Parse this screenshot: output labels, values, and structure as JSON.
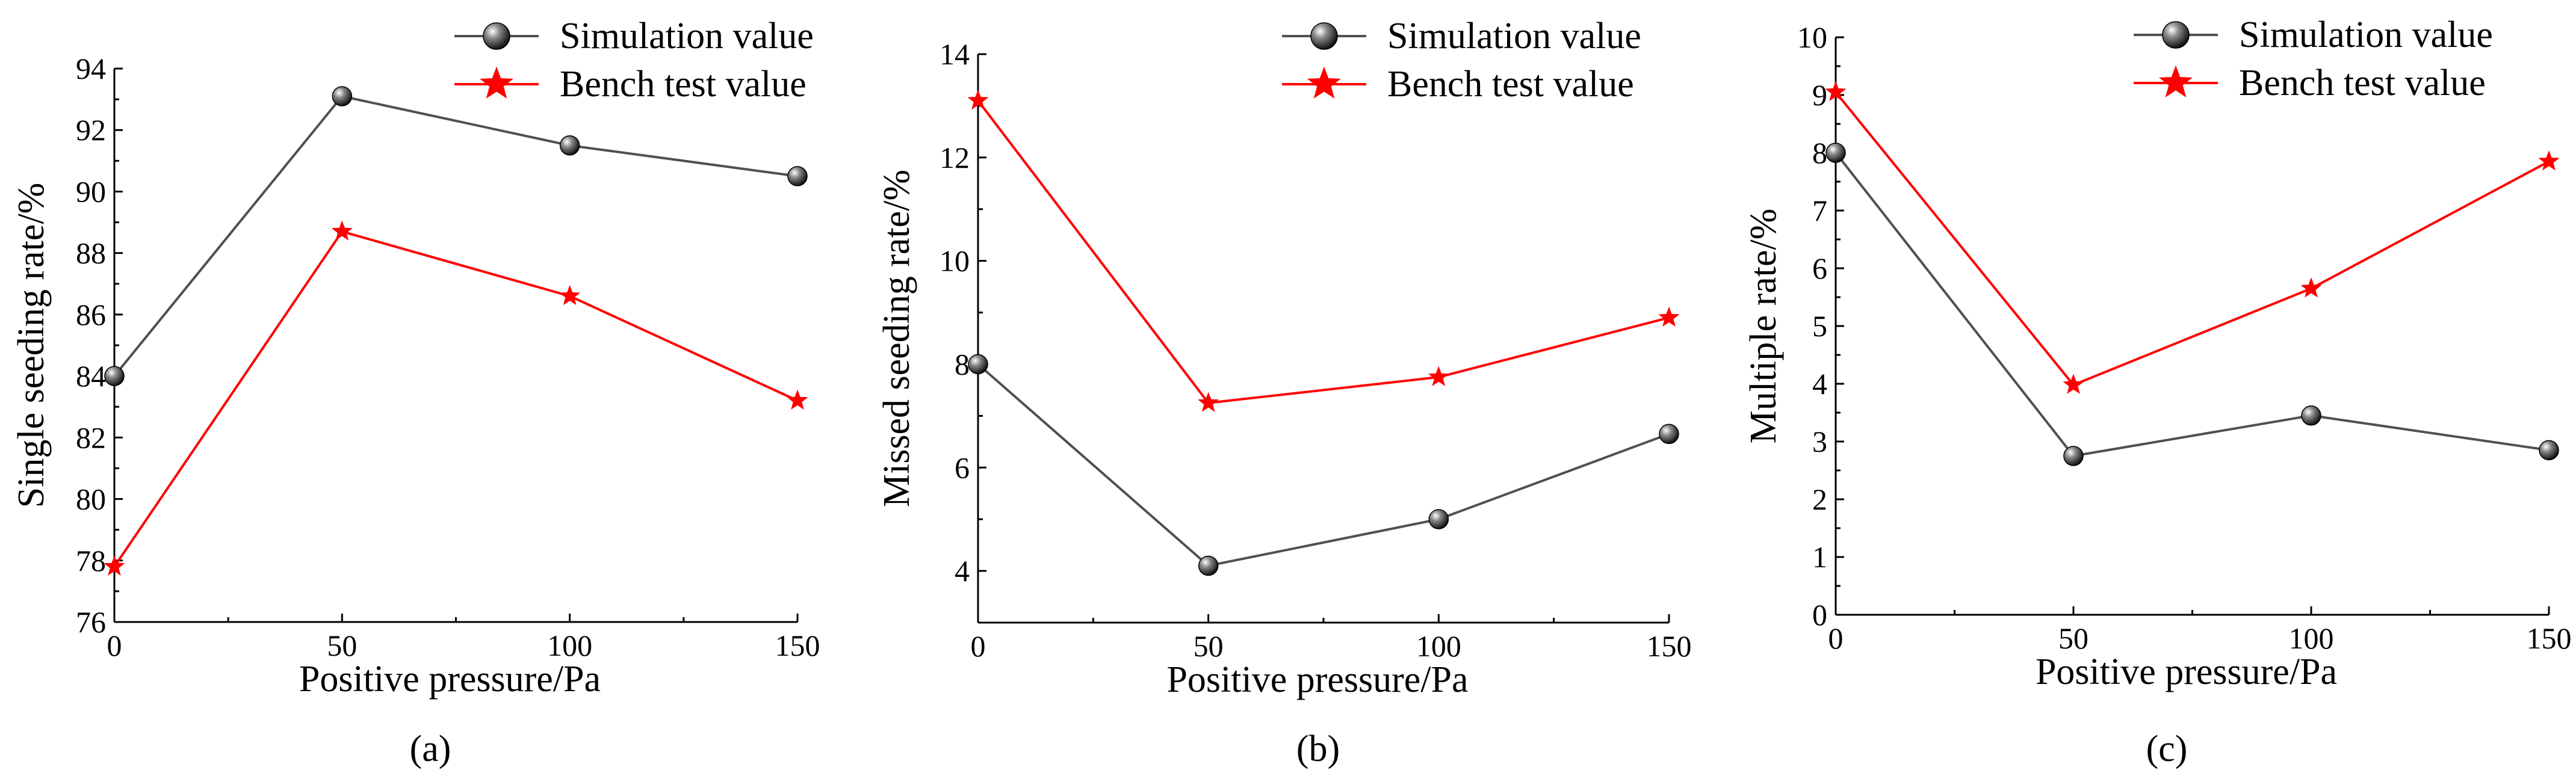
{
  "chart_data": [
    {
      "type": "line",
      "panel_label": "(a)",
      "xlabel": "Positive pressure/Pa",
      "ylabel": "Single seeding rate/%",
      "x": [
        0,
        50,
        100,
        150
      ],
      "xticks": [
        "0",
        "50",
        "100",
        "150"
      ],
      "xlim": [
        0,
        150
      ],
      "ylim": [
        76,
        94
      ],
      "yticks": [
        "76",
        "78",
        "80",
        "82",
        "84",
        "86",
        "88",
        "90",
        "92",
        "94"
      ],
      "legend_position": "top-right",
      "series": [
        {
          "name": "Simulation value",
          "marker": "sphere",
          "color": "#505050",
          "values": [
            84.0,
            93.1,
            91.5,
            90.5
          ]
        },
        {
          "name": "Bench test value",
          "marker": "star",
          "color": "#ff0000",
          "values": [
            77.8,
            88.7,
            86.6,
            83.2
          ]
        }
      ]
    },
    {
      "type": "line",
      "panel_label": "(b)",
      "xlabel": "Positive pressure/Pa",
      "ylabel": "Missed seeding rate/%",
      "x": [
        0,
        50,
        100,
        150
      ],
      "xticks": [
        "0",
        "50",
        "100",
        "150"
      ],
      "xlim": [
        0,
        150
      ],
      "ylim": [
        3,
        14
      ],
      "yticks": [
        "4",
        "6",
        "8",
        "10",
        "12",
        "14"
      ],
      "legend_position": "top-right",
      "series": [
        {
          "name": "Simulation value",
          "marker": "sphere",
          "color": "#505050",
          "values": [
            8.0,
            4.1,
            5.0,
            6.65
          ]
        },
        {
          "name": "Bench test value",
          "marker": "star",
          "color": "#ff0000",
          "values": [
            13.1,
            7.25,
            7.75,
            8.9
          ]
        }
      ]
    },
    {
      "type": "line",
      "panel_label": "(c)",
      "xlabel": "Positive pressure/Pa",
      "ylabel": "Multiple rate/%",
      "x": [
        0,
        50,
        100,
        150
      ],
      "xticks": [
        "0",
        "50",
        "100",
        "150"
      ],
      "xlim": [
        0,
        150
      ],
      "ylim": [
        0,
        10
      ],
      "yticks": [
        "0",
        "1",
        "2",
        "3",
        "4",
        "5",
        "6",
        "7",
        "8",
        "9",
        "10"
      ],
      "legend_position": "top-right",
      "series": [
        {
          "name": "Simulation value",
          "marker": "sphere",
          "color": "#505050",
          "values": [
            8.0,
            2.75,
            3.45,
            2.85
          ]
        },
        {
          "name": "Bench test value",
          "marker": "star",
          "color": "#ff0000",
          "values": [
            9.05,
            3.98,
            5.65,
            7.85
          ]
        }
      ]
    }
  ]
}
